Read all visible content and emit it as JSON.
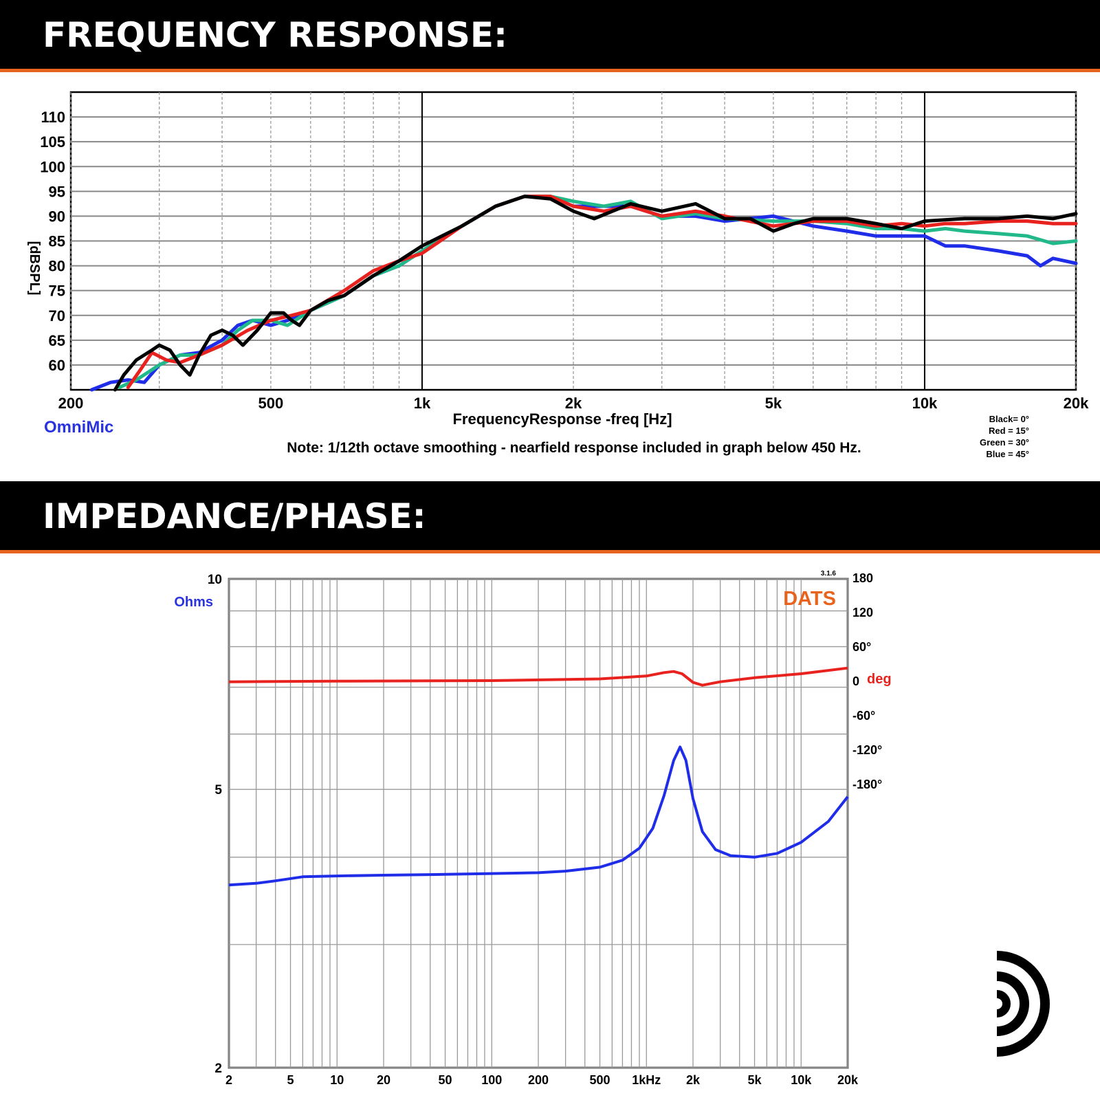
{
  "headers": {
    "frequency_response": "FREQUENCY RESPONSE:",
    "impedance_phase": "IMPEDANCE/PHASE:"
  },
  "colors": {
    "banner": "#000000",
    "accent": "#e8641e",
    "series_black": "#000000",
    "series_red": "#e8221e",
    "series_green": "#22b98a",
    "series_blue": "#1f2de8",
    "omnimic": "#2a33e0",
    "dats": "#e8641e"
  },
  "fr_text": {
    "brand": "OmniMic",
    "note": "Note: 1/12th octave smoothing - nearfield response included in graph below 450 Hz.",
    "legend": [
      "Black= 0°",
      "Red = 15°",
      "Green = 30°",
      "Blue = 45°"
    ]
  },
  "imp_text": {
    "brand": "DATS",
    "version": "3.1.6",
    "left_unit": "Ohms",
    "right_unit": "deg"
  },
  "chart_data": [
    {
      "type": "line",
      "xlabel": "FrequencyResponse -freq [Hz]",
      "ylabel": "[dBSPL]",
      "x_scale": "log",
      "xlim": [
        200,
        20000
      ],
      "ylim": [
        55,
        115
      ],
      "xticks": [
        200,
        500,
        1000,
        2000,
        5000,
        10000,
        20000
      ],
      "xtick_labels": [
        "200",
        "500",
        "1k",
        "2k",
        "5k",
        "10k",
        "20k"
      ],
      "yticks": [
        60,
        65,
        70,
        75,
        80,
        85,
        90,
        95,
        100,
        105,
        110
      ],
      "grid": true,
      "series": [
        {
          "name": "Blue = 45°",
          "color": "#1f2de8",
          "points": [
            [
              220,
              55
            ],
            [
              240,
              56.5
            ],
            [
              260,
              57
            ],
            [
              280,
              56.5
            ],
            [
              300,
              60
            ],
            [
              330,
              62
            ],
            [
              360,
              62.5
            ],
            [
              400,
              65
            ],
            [
              430,
              68
            ],
            [
              460,
              69
            ],
            [
              500,
              68
            ],
            [
              540,
              69
            ],
            [
              600,
              71
            ],
            [
              700,
              74
            ],
            [
              800,
              78
            ],
            [
              900,
              80
            ],
            [
              1000,
              83
            ],
            [
              1200,
              88
            ],
            [
              1400,
              92
            ],
            [
              1600,
              94
            ],
            [
              1800,
              94
            ],
            [
              2000,
              92
            ],
            [
              2300,
              92
            ],
            [
              2600,
              92
            ],
            [
              3000,
              90
            ],
            [
              3500,
              90
            ],
            [
              4000,
              89
            ],
            [
              5000,
              90
            ],
            [
              6000,
              88
            ],
            [
              7000,
              87
            ],
            [
              8000,
              86
            ],
            [
              9000,
              86
            ],
            [
              10000,
              86
            ],
            [
              11000,
              84
            ],
            [
              12000,
              84
            ],
            [
              14000,
              83
            ],
            [
              16000,
              82
            ],
            [
              17000,
              80
            ],
            [
              18000,
              81.5
            ],
            [
              20000,
              80.5
            ]
          ]
        },
        {
          "name": "Green = 30°",
          "color": "#22b98a",
          "points": [
            [
              250,
              55.5
            ],
            [
              270,
              57
            ],
            [
              300,
              60
            ],
            [
              330,
              62
            ],
            [
              360,
              62
            ],
            [
              400,
              64
            ],
            [
              430,
              67
            ],
            [
              460,
              69
            ],
            [
              500,
              69
            ],
            [
              540,
              68
            ],
            [
              600,
              71
            ],
            [
              700,
              74
            ],
            [
              800,
              78
            ],
            [
              900,
              80
            ],
            [
              1000,
              83
            ],
            [
              1200,
              88
            ],
            [
              1400,
              92
            ],
            [
              1600,
              94
            ],
            [
              1800,
              94
            ],
            [
              2000,
              93
            ],
            [
              2300,
              92
            ],
            [
              2600,
              93
            ],
            [
              3000,
              89.5
            ],
            [
              3500,
              90.5
            ],
            [
              4000,
              89.5
            ],
            [
              5000,
              89
            ],
            [
              6000,
              89
            ],
            [
              7000,
              88.5
            ],
            [
              8000,
              87.5
            ],
            [
              9000,
              87.5
            ],
            [
              10000,
              87
            ],
            [
              11000,
              87.5
            ],
            [
              12000,
              87
            ],
            [
              14000,
              86.5
            ],
            [
              16000,
              86
            ],
            [
              18000,
              84.5
            ],
            [
              20000,
              85
            ]
          ]
        },
        {
          "name": "Red = 15°",
          "color": "#e8221e",
          "points": [
            [
              260,
              55.5
            ],
            [
              275,
              59
            ],
            [
              290,
              62.5
            ],
            [
              310,
              61
            ],
            [
              330,
              60.5
            ],
            [
              360,
              62
            ],
            [
              400,
              64
            ],
            [
              450,
              67
            ],
            [
              500,
              69
            ],
            [
              550,
              70
            ],
            [
              600,
              71
            ],
            [
              700,
              75
            ],
            [
              800,
              79
            ],
            [
              900,
              81
            ],
            [
              1000,
              82.5
            ],
            [
              1200,
              88
            ],
            [
              1400,
              92
            ],
            [
              1600,
              94
            ],
            [
              1800,
              94
            ],
            [
              2000,
              92
            ],
            [
              2300,
              91
            ],
            [
              2600,
              92
            ],
            [
              3000,
              90
            ],
            [
              3500,
              91
            ],
            [
              4000,
              90
            ],
            [
              5000,
              88
            ],
            [
              6000,
              89
            ],
            [
              7000,
              89
            ],
            [
              8000,
              88
            ],
            [
              9000,
              88.5
            ],
            [
              10000,
              88
            ],
            [
              11000,
              88.5
            ],
            [
              12000,
              88.5
            ],
            [
              14000,
              89
            ],
            [
              16000,
              89
            ],
            [
              18000,
              88.5
            ],
            [
              20000,
              88.5
            ]
          ]
        },
        {
          "name": "Black= 0°",
          "color": "#000000",
          "points": [
            [
              245,
              55
            ],
            [
              255,
              58
            ],
            [
              270,
              61
            ],
            [
              290,
              63
            ],
            [
              300,
              64
            ],
            [
              315,
              63
            ],
            [
              330,
              60
            ],
            [
              345,
              58
            ],
            [
              360,
              62
            ],
            [
              380,
              66
            ],
            [
              400,
              67
            ],
            [
              420,
              66
            ],
            [
              440,
              64
            ],
            [
              470,
              67
            ],
            [
              500,
              70.5
            ],
            [
              530,
              70.5
            ],
            [
              550,
              69
            ],
            [
              570,
              68
            ],
            [
              600,
              71
            ],
            [
              650,
              73
            ],
            [
              700,
              74
            ],
            [
              800,
              78
            ],
            [
              900,
              81
            ],
            [
              1000,
              84
            ],
            [
              1200,
              88
            ],
            [
              1400,
              92
            ],
            [
              1600,
              94
            ],
            [
              1800,
              93.5
            ],
            [
              2000,
              91
            ],
            [
              2200,
              89.5
            ],
            [
              2600,
              92.5
            ],
            [
              3000,
              91
            ],
            [
              3500,
              92.5
            ],
            [
              4000,
              89.5
            ],
            [
              4500,
              89.5
            ],
            [
              5000,
              87
            ],
            [
              5500,
              88.5
            ],
            [
              6000,
              89.5
            ],
            [
              7000,
              89.5
            ],
            [
              8000,
              88.5
            ],
            [
              9000,
              87.5
            ],
            [
              10000,
              89
            ],
            [
              12000,
              89.5
            ],
            [
              14000,
              89.5
            ],
            [
              16000,
              90
            ],
            [
              18000,
              89.5
            ],
            [
              20000,
              90.5
            ]
          ]
        }
      ]
    },
    {
      "type": "line",
      "x_scale": "log",
      "y_scale": "log",
      "xlim": [
        2,
        20000
      ],
      "ylim": [
        2,
        10
      ],
      "y2lim": [
        -180,
        180
      ],
      "xticks": [
        2,
        5,
        10,
        20,
        50,
        100,
        200,
        500,
        1000,
        2000,
        5000,
        10000,
        20000
      ],
      "xtick_labels": [
        "2",
        "5",
        "10",
        "20",
        "50",
        "100",
        "200",
        "500",
        "1kHz",
        "2k",
        "5k",
        "10k",
        "20k"
      ],
      "yticks": [
        2,
        5,
        10
      ],
      "ytick_labels": [
        "2",
        "5",
        "10"
      ],
      "y2ticks": [
        180,
        120,
        60,
        0,
        -60,
        -120,
        -180
      ],
      "y2tick_labels": [
        "180",
        "120",
        "60°",
        "0",
        "-60°",
        "-120°",
        "-180°"
      ],
      "grid": true,
      "series": [
        {
          "name": "Ohms",
          "color": "#1f2de8",
          "axis": "left",
          "points": [
            [
              2,
              3.65
            ],
            [
              3,
              3.67
            ],
            [
              4,
              3.7
            ],
            [
              6,
              3.75
            ],
            [
              10,
              3.76
            ],
            [
              20,
              3.77
            ],
            [
              50,
              3.78
            ],
            [
              100,
              3.79
            ],
            [
              200,
              3.8
            ],
            [
              300,
              3.82
            ],
            [
              500,
              3.87
            ],
            [
              700,
              3.96
            ],
            [
              900,
              4.12
            ],
            [
              1100,
              4.4
            ],
            [
              1300,
              4.9
            ],
            [
              1500,
              5.5
            ],
            [
              1650,
              5.75
            ],
            [
              1800,
              5.5
            ],
            [
              2000,
              4.85
            ],
            [
              2300,
              4.35
            ],
            [
              2800,
              4.1
            ],
            [
              3500,
              4.02
            ],
            [
              5000,
              4.0
            ],
            [
              7000,
              4.05
            ],
            [
              10000,
              4.2
            ],
            [
              15000,
              4.5
            ],
            [
              20000,
              4.88
            ]
          ]
        },
        {
          "name": "deg",
          "color": "#e8221e",
          "axis": "right",
          "points": [
            [
              2,
              -2
            ],
            [
              10,
              -1
            ],
            [
              100,
              0
            ],
            [
              500,
              3
            ],
            [
              1000,
              8
            ],
            [
              1300,
              14
            ],
            [
              1500,
              16
            ],
            [
              1700,
              12
            ],
            [
              2000,
              -3
            ],
            [
              2300,
              -8
            ],
            [
              3000,
              -2
            ],
            [
              5000,
              5
            ],
            [
              10000,
              12
            ],
            [
              20000,
              22
            ]
          ]
        }
      ]
    }
  ]
}
